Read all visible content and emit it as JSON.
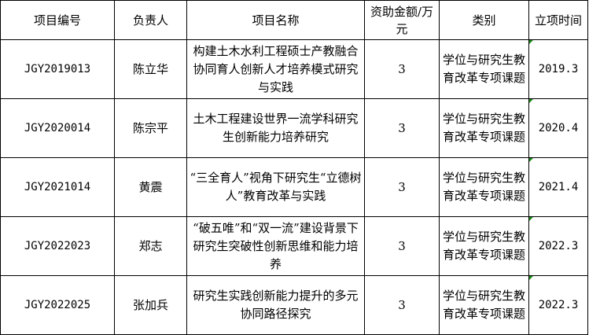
{
  "headers": [
    "项目编号",
    "负责人",
    "项目名称",
    "资助金额/万元",
    "类别",
    "立项时间"
  ],
  "rows": [
    {
      "id": "JGY2019013",
      "leader": "陈立华",
      "name": "构建土木水利工程硕士产教融合协同育人创新人才培养模式研究与实践",
      "amount": "3",
      "category": "学位与研究生教育改革专项课题",
      "date": "2019.3"
    },
    {
      "id": "JGY2020014",
      "leader": "陈宗平",
      "name": "土木工程建设世界一流学科研究生创新能力培养研究",
      "amount": "3",
      "category": "学位与研究生教育改革专项课题",
      "date": "2020.4"
    },
    {
      "id": "JGY2021014",
      "leader": "黄震",
      "name": "“三全育人”视角下研究生“立德树人”教育改革与实践",
      "amount": "3",
      "category": "学位与研究生教育改革专项课题",
      "date": "2021.4"
    },
    {
      "id": "JGY2022023",
      "leader": "郑志",
      "name": "“破五唯”和“双一流”建设背景下研究生突破性创新思维和能力培养",
      "amount": "3",
      "category": "学位与研究生教育改革专项课题",
      "date": "2022.3"
    },
    {
      "id": "JGY2022025",
      "leader": "张加兵",
      "name": "研究生实践创新能力提升的多元协同路径探究",
      "amount": "3",
      "category": "学位与研究生教育改革专项课题",
      "date": "2022.3"
    }
  ]
}
